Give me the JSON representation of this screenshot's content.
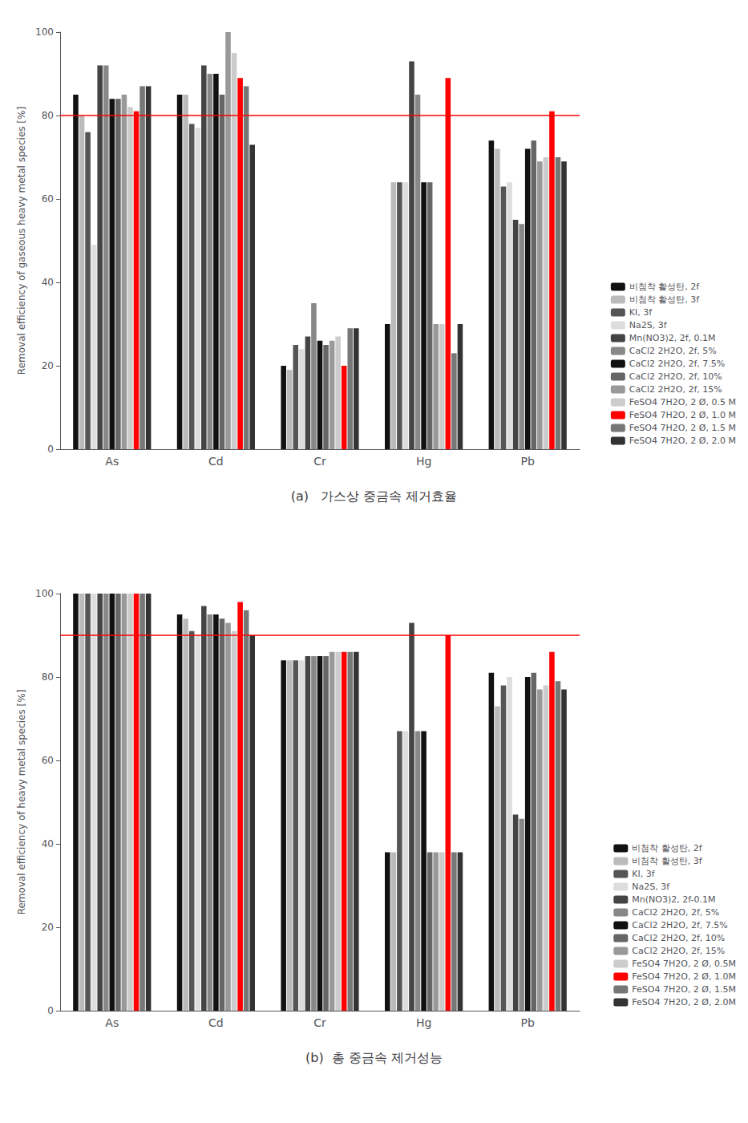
{
  "chart_data": [
    {
      "type": "bar",
      "title": "(a)   가스상 중금속 제거효율",
      "y_label": "Removal efficiency of gaseous heavy metal species [%]",
      "categories": [
        "As",
        "Cd",
        "Cr",
        "Hg",
        "Pb"
      ],
      "series": [
        {
          "name": "비첨착 활성탄, 2f",
          "color": "#111111",
          "values": [
            85,
            85,
            20,
            30,
            74
          ]
        },
        {
          "name": "비첨착 활성탄, 3f",
          "color": "#bbbbbb",
          "values": [
            80,
            85,
            19,
            64,
            72
          ]
        },
        {
          "name": "KI, 3f",
          "color": "#555555",
          "values": [
            76,
            78,
            25,
            64,
            63
          ]
        },
        {
          "name": "Na2S, 3f",
          "color": "#dddddd",
          "values": [
            49,
            77,
            24,
            64,
            64
          ]
        },
        {
          "name": "Mn(NO3)2, 2f, 0.1M",
          "color": "#444444",
          "values": [
            92,
            92,
            27,
            93,
            55
          ]
        },
        {
          "name": "CaCl2 2H2O, 2f, 5%",
          "color": "#888888",
          "values": [
            92,
            90,
            35,
            85,
            54
          ]
        },
        {
          "name": "CaCl2 2H2O, 2f, 7.5%",
          "color": "#111111",
          "values": [
            84,
            90,
            26,
            64,
            72
          ]
        },
        {
          "name": "CaCl2 2H2O, 2f, 10%",
          "color": "#666666",
          "values": [
            84,
            85,
            25,
            64,
            74
          ]
        },
        {
          "name": "CaCl2 2H2O, 2f, 15%",
          "color": "#999999",
          "values": [
            85,
            100,
            26,
            30,
            69
          ]
        },
        {
          "name": "FeSO4 7H2O, 2 Ø, 0.5 M",
          "color": "#cccccc",
          "values": [
            82,
            95,
            27,
            30,
            70
          ]
        },
        {
          "name": "FeSO4 7H2O, 2 Ø, 1.0 M",
          "color": "#ff0000",
          "values": [
            81,
            89,
            20,
            89,
            81
          ]
        },
        {
          "name": "FeSO4 7H2O, 2 Ø, 1.5 M",
          "color": "#777777",
          "values": [
            87,
            87,
            29,
            23,
            70
          ]
        },
        {
          "name": "FeSO4 7H2O, 2 Ø, 2.0 M",
          "color": "#333333",
          "values": [
            87,
            73,
            29,
            30,
            69
          ]
        }
      ],
      "ylim": [
        0,
        100
      ],
      "yticks": [
        0,
        20,
        40,
        60,
        80,
        100
      ],
      "grid": false,
      "legend": "lower right",
      "hline": {
        "value": 80,
        "color": "#ff0000"
      }
    },
    {
      "type": "bar",
      "title": "(b)  총 중금속 제거성능",
      "y_label": "Removal efficiency of heavy metal species [%]",
      "categories": [
        "As",
        "Cd",
        "Cr",
        "Hg",
        "Pb"
      ],
      "series": [
        {
          "name": "비첨착 활성탄, 2f",
          "color": "#111111",
          "values": [
            100,
            95,
            84,
            38,
            81
          ]
        },
        {
          "name": "비첨착 활성탄, 3f",
          "color": "#bbbbbb",
          "values": [
            100,
            94,
            84,
            38,
            73
          ]
        },
        {
          "name": "KI, 3f",
          "color": "#555555",
          "values": [
            100,
            91,
            84,
            67,
            78
          ]
        },
        {
          "name": "Na2S, 3f",
          "color": "#dddddd",
          "values": [
            100,
            90,
            84,
            67,
            80
          ]
        },
        {
          "name": "Mn(NO3)2, 2f-0.1M",
          "color": "#444444",
          "values": [
            100,
            97,
            85,
            93,
            47
          ]
        },
        {
          "name": "CaCl2 2H2O, 2f, 5%",
          "color": "#888888",
          "values": [
            100,
            95,
            85,
            67,
            46
          ]
        },
        {
          "name": "CaCl2 2H2O, 2f, 7.5%",
          "color": "#111111",
          "values": [
            100,
            95,
            85,
            67,
            80
          ]
        },
        {
          "name": "CaCl2 2H2O, 2f, 10%",
          "color": "#666666",
          "values": [
            100,
            94,
            85,
            38,
            81
          ]
        },
        {
          "name": "CaCl2 2H2O, 2f, 15%",
          "color": "#999999",
          "values": [
            100,
            93,
            86,
            38,
            77
          ]
        },
        {
          "name": "FeSO4 7H2O, 2 Ø, 0.5M",
          "color": "#cccccc",
          "values": [
            100,
            91,
            86,
            38,
            78
          ]
        },
        {
          "name": "FeSO4 7H2O, 2 Ø, 1.0M",
          "color": "#ff0000",
          "values": [
            100,
            98,
            86,
            90,
            86
          ]
        },
        {
          "name": "FeSO4 7H2O, 2 Ø, 1.5M",
          "color": "#777777",
          "values": [
            100,
            96,
            86,
            38,
            79
          ]
        },
        {
          "name": "FeSO4 7H2O, 2 Ø, 2.0M",
          "color": "#333333",
          "values": [
            100,
            90,
            86,
            38,
            77
          ]
        }
      ],
      "ylim": [
        0,
        100
      ],
      "yticks": [
        0,
        20,
        40,
        60,
        80,
        100
      ],
      "grid": false,
      "legend": "lower right",
      "hline": {
        "value": 90,
        "color": "#ff0000"
      }
    }
  ]
}
